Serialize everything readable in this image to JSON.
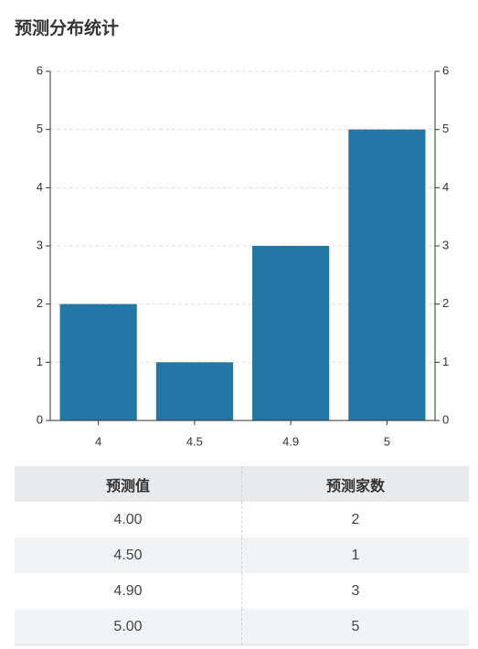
{
  "chart_data": {
    "type": "bar",
    "title": "预测分布统计",
    "categories": [
      "4",
      "4.5",
      "4.9",
      "5"
    ],
    "values": [
      2,
      1,
      3,
      5
    ],
    "color": "#2377a4",
    "ylim": [
      0,
      6
    ],
    "yticks": [
      0,
      1,
      2,
      3,
      4,
      5,
      6
    ],
    "y2lim": [
      0,
      6
    ],
    "y2ticks": [
      0,
      1,
      2,
      3,
      4,
      5,
      6
    ],
    "grid": true
  },
  "table": {
    "header": [
      "预测值",
      "预测家数"
    ],
    "rows": [
      [
        "4.00",
        "2"
      ],
      [
        "4.50",
        "1"
      ],
      [
        "4.90",
        "3"
      ],
      [
        "5.00",
        "5"
      ]
    ]
  }
}
